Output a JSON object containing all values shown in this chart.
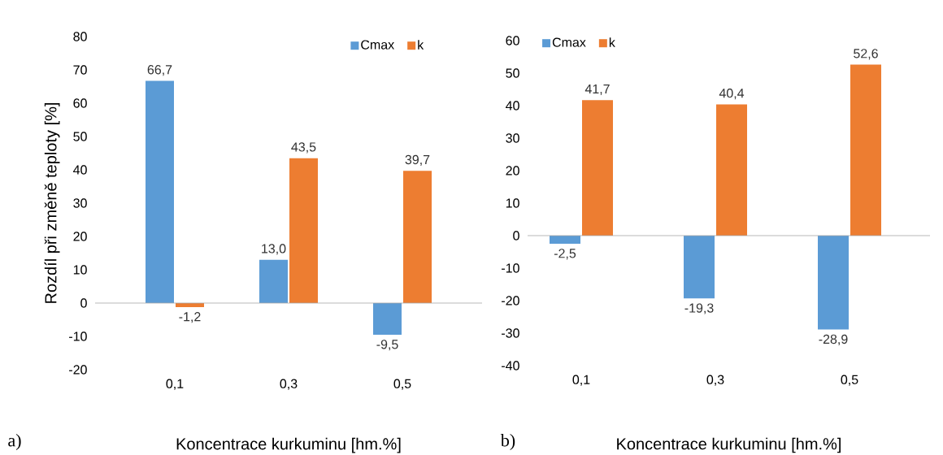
{
  "chart_data": [
    {
      "type": "bar",
      "ylabel": "Rozdíl při změně teploty [%]",
      "xlabel": "Koncentrace kurkuminu [hm.%]",
      "categories": [
        "0,1",
        "0,3",
        "0,5"
      ],
      "series": [
        {
          "name": "Cmax",
          "color": "#5b9bd5",
          "values": [
            66.7,
            13.0,
            -9.5
          ],
          "value_labels": [
            "66,7",
            "13,0",
            "-9,5"
          ]
        },
        {
          "name": "k",
          "color": "#ed7d31",
          "values": [
            -1.2,
            43.5,
            39.7
          ],
          "value_labels": [
            "-1,2",
            "43,5",
            "39,7"
          ]
        }
      ],
      "ylim": [
        -20,
        80
      ],
      "yticks": [
        -20,
        -10,
        0,
        10,
        20,
        30,
        40,
        50,
        60,
        70,
        80
      ],
      "legend": "top right",
      "annotations": [
        "a)"
      ]
    },
    {
      "type": "bar",
      "xlabel": "Koncentrace kurkuminu [hm.%]",
      "categories": [
        "0,1",
        "0,3",
        "0,5"
      ],
      "series": [
        {
          "name": "Cmax",
          "color": "#5b9bd5",
          "values": [
            -2.5,
            -19.3,
            -28.9
          ],
          "value_labels": [
            "-2,5",
            "-19,3",
            "-28,9"
          ]
        },
        {
          "name": "k",
          "color": "#ed7d31",
          "values": [
            41.7,
            40.4,
            52.6
          ],
          "value_labels": [
            "41,7",
            "40,4",
            "52,6"
          ]
        }
      ],
      "ylim": [
        -40,
        60
      ],
      "yticks": [
        -40,
        -30,
        -20,
        -10,
        0,
        10,
        20,
        30,
        40,
        50,
        60
      ],
      "legend": "top left",
      "annotations": [
        "b)"
      ]
    }
  ]
}
